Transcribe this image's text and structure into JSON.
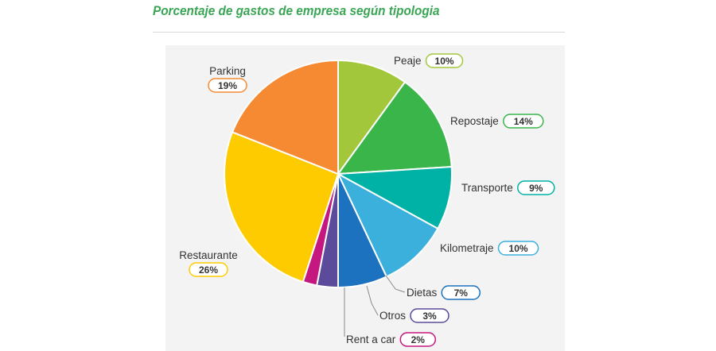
{
  "chart_data": {
    "type": "pie",
    "title": "Porcentaje de gastos de empresa según tipologia",
    "slices": [
      {
        "label": "Peaje",
        "value": 10,
        "value_label": "10%",
        "color": "#a2c73b"
      },
      {
        "label": "Repostaje",
        "value": 14,
        "value_label": "14%",
        "color": "#3ab54a"
      },
      {
        "label": "Transporte",
        "value": 9,
        "value_label": "9%",
        "color": "#00b2a5"
      },
      {
        "label": "Kilometraje",
        "value": 10,
        "value_label": "10%",
        "color": "#3bb0dc"
      },
      {
        "label": "Dietas",
        "value": 7,
        "value_label": "7%",
        "color": "#1c72be"
      },
      {
        "label": "Otros",
        "value": 3,
        "value_label": "3%",
        "color": "#5c4a9a"
      },
      {
        "label": "Rent a car",
        "value": 2,
        "value_label": "2%",
        "color": "#c4177f"
      },
      {
        "label": "Restaurante",
        "value": 26,
        "value_label": "26%",
        "color": "#fecb00"
      },
      {
        "label": "Parking",
        "value": 19,
        "value_label": "19%",
        "color": "#f58a33"
      }
    ]
  }
}
